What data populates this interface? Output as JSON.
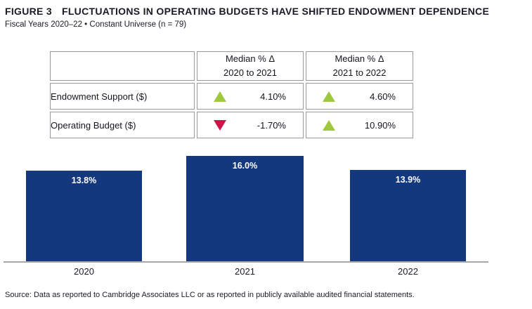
{
  "header": {
    "figure_label": "FIGURE 3",
    "title": "FLUCTUATIONS IN OPERATING BUDGETS HAVE SHIFTED ENDOWMENT DEPENDENCE",
    "subtitle": "Fiscal Years 2020–22 • Constant Universe (n = 79)"
  },
  "table": {
    "col_headers": [
      {
        "line1": "Median % Δ",
        "line2": "2020 to 2021"
      },
      {
        "line1": "Median % Δ",
        "line2": "2021 to 2022"
      }
    ],
    "rows": [
      {
        "label": "Endowment Support ($)",
        "cells": [
          {
            "direction": "up",
            "value": "4.10%"
          },
          {
            "direction": "up",
            "value": "4.60%"
          }
        ]
      },
      {
        "label": "Operating Budget ($)",
        "cells": [
          {
            "direction": "down",
            "value": "-1.70%"
          },
          {
            "direction": "up",
            "value": "10.90%"
          }
        ]
      }
    ]
  },
  "chart_data": {
    "type": "bar",
    "categories": [
      "2020",
      "2021",
      "2022"
    ],
    "values": [
      13.8,
      16.0,
      13.9
    ],
    "bar_labels": [
      "13.8%",
      "16.0%",
      "13.9%"
    ],
    "title": "",
    "xlabel": "",
    "ylabel": "",
    "ylim": [
      0,
      17
    ],
    "grid": false,
    "legend": "none",
    "bar_color": "#14387e",
    "bar_label_color": "#ffffff"
  },
  "colors": {
    "up_triangle": "#a0c83e",
    "down_triangle": "#d01349",
    "table_header_bg": "#eaf1f9",
    "table_border": "#999999",
    "axis_line": "#a6a6a6",
    "bar": "#14387e"
  },
  "footer": {
    "source": "Source: Data as reported to Cambridge Associates LLC or as reported in publicly available audited financial statements."
  }
}
